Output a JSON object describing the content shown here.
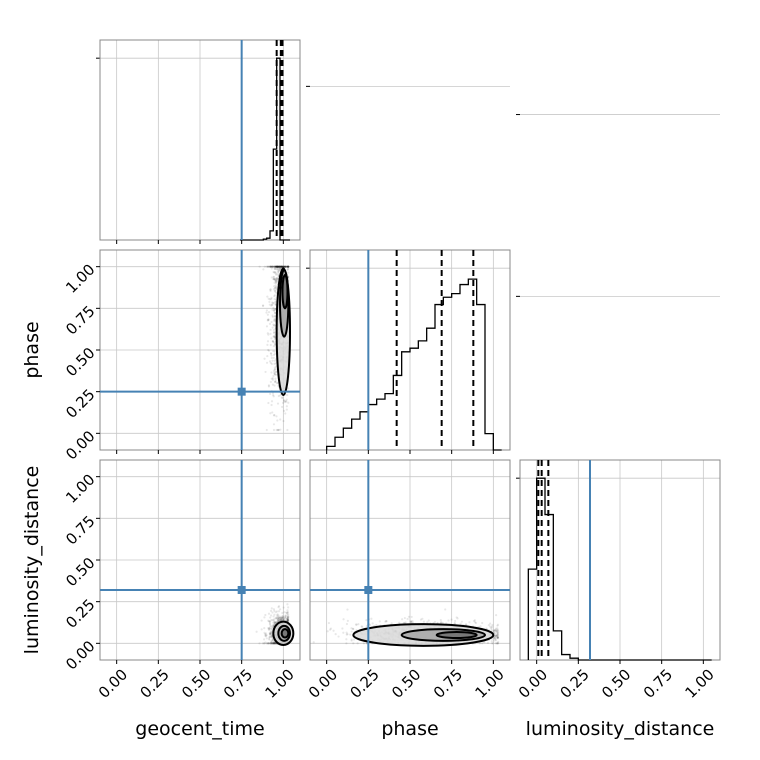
{
  "colors": {
    "truth": "#4682b4",
    "hist": "#000000",
    "grid": "#c8c8c8",
    "frame": "#888888"
  },
  "chart_data": {
    "type": "corner",
    "parameters": [
      "geocent_time",
      "phase",
      "luminosity_distance"
    ],
    "axis_labels": {
      "x": [
        "geocent_time",
        "phase",
        "luminosity_distance"
      ],
      "y": [
        "",
        "phase",
        "luminosity_distance"
      ]
    },
    "tick_values": [
      0.0,
      0.25,
      0.5,
      0.75,
      1.0
    ],
    "tick_labels": [
      "0.00",
      "0.25",
      "0.50",
      "0.75",
      "1.00"
    ],
    "axis_range": [
      -0.1,
      1.1
    ],
    "truths": [
      0.75,
      0.25,
      0.32
    ],
    "grid": true,
    "marginals": [
      {
        "parameter": "geocent_time",
        "bin_edges": [
          0.74,
          0.76,
          0.78,
          0.8,
          0.82,
          0.84,
          0.86,
          0.88,
          0.9,
          0.92,
          0.94,
          0.96,
          0.98,
          1.0,
          1.02,
          1.04
        ],
        "counts": [
          0,
          0,
          0,
          0,
          0,
          0,
          0,
          0.005,
          0.01,
          0.05,
          0.5,
          1.0,
          0,
          0,
          0
        ],
        "quantiles": [
          0.96,
          0.985,
          0.995
        ]
      },
      {
        "parameter": "phase",
        "bin_edges": [
          0.0,
          0.05,
          0.1,
          0.15,
          0.2,
          0.25,
          0.3,
          0.35,
          0.4,
          0.45,
          0.5,
          0.55,
          0.6,
          0.65,
          0.7,
          0.75,
          0.8,
          0.85,
          0.9,
          0.95,
          1.0,
          1.05
        ],
        "counts": [
          0.02,
          0.07,
          0.12,
          0.17,
          0.21,
          0.25,
          0.28,
          0.31,
          0.41,
          0.54,
          0.56,
          0.6,
          0.67,
          0.8,
          0.84,
          0.86,
          0.91,
          0.94,
          0.8,
          0.09,
          0
        ],
        "quantiles": [
          0.42,
          0.69,
          0.88
        ]
      },
      {
        "parameter": "luminosity_distance",
        "bin_edges": [
          -0.05,
          0.0,
          0.05,
          0.1,
          0.15,
          0.2,
          0.25,
          0.3,
          0.35,
          0.4,
          0.45,
          0.5,
          0.55,
          0.6,
          0.65,
          0.7,
          0.75,
          0.8,
          0.85,
          0.9,
          0.95,
          1.0,
          1.05
        ],
        "counts": [
          0.5,
          1.0,
          0.8,
          0.16,
          0.03,
          0.01,
          0,
          0,
          0,
          0,
          0,
          0,
          0,
          0,
          0,
          0,
          0,
          0,
          0,
          0,
          0,
          0
        ],
        "quantiles": [
          0.01,
          0.03,
          0.07
        ]
      }
    ],
    "joint": [
      {
        "x": "geocent_time",
        "y": "phase",
        "scatter_center": [
          0.98,
          0.7
        ],
        "scatter_spread": [
          0.035,
          0.28
        ],
        "scatter_range_y": [
          0.02,
          1.0
        ],
        "contours": [
          {
            "cx": 1.0,
            "cy": 0.61,
            "rx": 0.04,
            "ry": 0.38
          },
          {
            "cx": 1.005,
            "cy": 0.78,
            "rx": 0.025,
            "ry": 0.2
          },
          {
            "cx": 1.01,
            "cy": 0.85,
            "rx": 0.015,
            "ry": 0.1
          }
        ]
      },
      {
        "x": "geocent_time",
        "y": "luminosity_distance",
        "scatter_center": [
          0.99,
          0.06
        ],
        "scatter_spread": [
          0.04,
          0.06
        ],
        "scatter_range_y": [
          0.0,
          0.3
        ],
        "contours": [
          {
            "cx": 1.0,
            "cy": 0.06,
            "rx": 0.06,
            "ry": 0.07
          },
          {
            "cx": 1.005,
            "cy": 0.06,
            "rx": 0.035,
            "ry": 0.045
          },
          {
            "cx": 1.01,
            "cy": 0.06,
            "rx": 0.02,
            "ry": 0.025
          }
        ]
      },
      {
        "x": "phase",
        "y": "luminosity_distance",
        "scatter_center": [
          0.62,
          0.06
        ],
        "scatter_spread": [
          0.25,
          0.04
        ],
        "scatter_range_y": [
          0.0,
          0.24
        ],
        "contours": [
          {
            "cx": 0.58,
            "cy": 0.05,
            "rx": 0.42,
            "ry": 0.065
          },
          {
            "cx": 0.7,
            "cy": 0.05,
            "rx": 0.25,
            "ry": 0.035
          },
          {
            "cx": 0.78,
            "cy": 0.05,
            "rx": 0.12,
            "ry": 0.018
          }
        ]
      }
    ]
  }
}
